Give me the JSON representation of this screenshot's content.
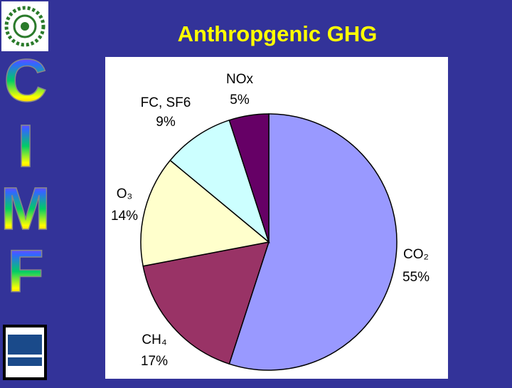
{
  "chart_data": {
    "type": "pie",
    "title": "Anthropgenic GHG",
    "categories": [
      "CO₂",
      "CH₄",
      "O₃",
      "FC, SF6",
      "NOx"
    ],
    "values": [
      55,
      17,
      14,
      9,
      5
    ],
    "value_labels": [
      "55%",
      "17%",
      "14%",
      "9%",
      "5%"
    ],
    "colors": [
      "#9999ff",
      "#993366",
      "#ffffcc",
      "#ccffff",
      "#660066"
    ]
  },
  "sidebar_letters": [
    "C",
    "I",
    "M",
    "F"
  ]
}
